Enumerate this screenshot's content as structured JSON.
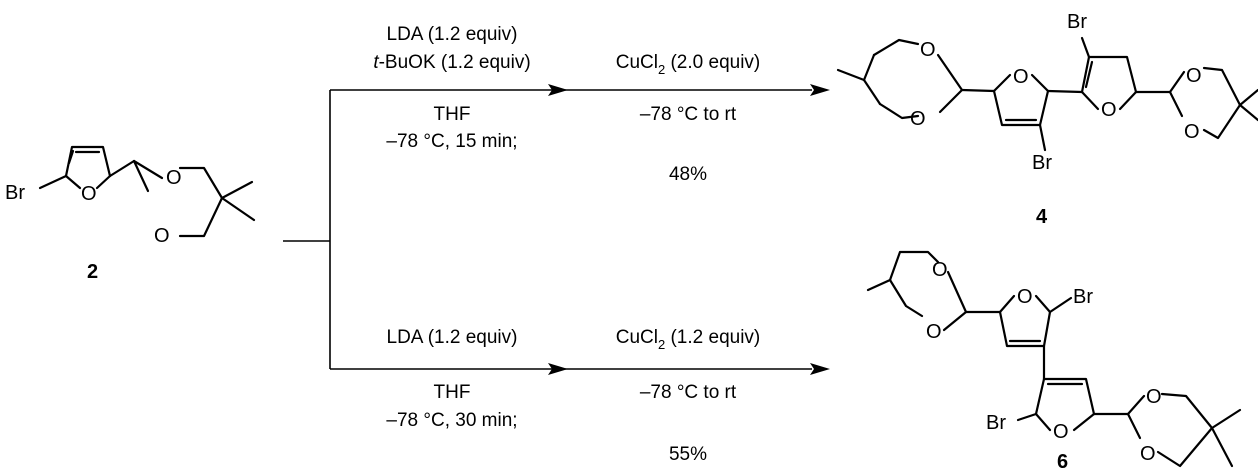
{
  "compounds": {
    "start": {
      "label": "2",
      "atoms": {
        "br": "Br",
        "o_ring": "O",
        "o_a": "O",
        "o_b": "O"
      }
    },
    "top_product": {
      "label": "4",
      "atoms": {
        "br1": "Br",
        "br2": "Br",
        "o_ring1": "O",
        "o_ring2": "O",
        "o1": "O",
        "o2": "O",
        "o3": "O",
        "o4": "O"
      }
    },
    "bottom_product": {
      "label": "6",
      "atoms": {
        "br1": "Br",
        "br2": "Br",
        "o_ring1": "O",
        "o_ring2": "O",
        "o1": "O",
        "o2": "O",
        "o3": "O",
        "o4": "O"
      }
    }
  },
  "top_route": {
    "step1": {
      "reagent1": "LDA (1.2 equiv)",
      "reagent2_prefix": "t",
      "reagent2_rest": "-BuOK (1.2 equiv)",
      "solvent": "THF",
      "conditions": "–78 °C, 15 min;"
    },
    "step2": {
      "reagent_pre": "CuCl",
      "reagent_sub": "2",
      "reagent_post": " (2.0 equiv)",
      "conditions": "–78 °C to rt",
      "yield": "48%"
    }
  },
  "bottom_route": {
    "step1": {
      "reagent1": "LDA (1.2 equiv)",
      "solvent": "THF",
      "conditions": "–78 °C, 30 min;"
    },
    "step2": {
      "reagent_pre": "CuCl",
      "reagent_sub": "2",
      "reagent_post": " (1.2 equiv)",
      "conditions": "–78 °C to rt",
      "yield": "55%"
    }
  }
}
